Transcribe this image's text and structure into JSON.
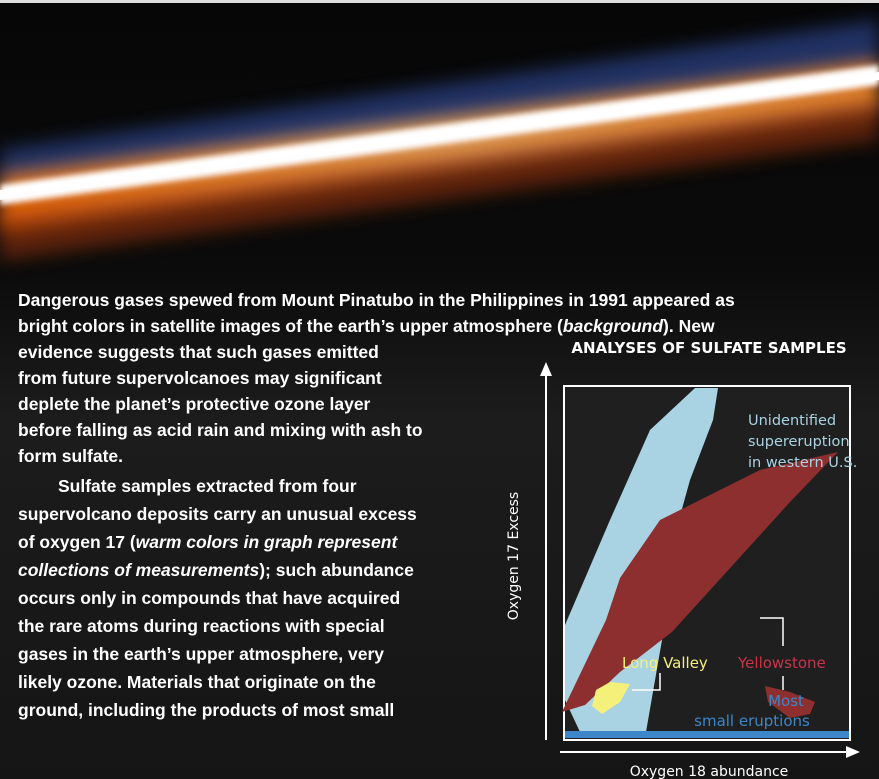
{
  "caption": {
    "paragraphs": [
      {
        "lines": [
          [
            "Dangerous gases spewed from Mount Pinatubo in the Philippines in 1991 appeared as"
          ],
          [
            "bright colors in satellite images of the earth’s upper atmosphere (",
            {
              "italic": "background"
            },
            "). New"
          ],
          [
            "evidence suggests that such gases emitted"
          ],
          [
            "from future supervolcanoes may significant"
          ],
          [
            "deplete the planet’s protective ozone layer"
          ],
          [
            "before falling as acid rain and mixing with ash to"
          ],
          [
            "form sulfate."
          ]
        ]
      },
      {
        "lines": [
          [
            "Sulfate samples extracted from four"
          ],
          [
            "supervolcano deposits carry an unusual excess"
          ],
          [
            "of oxygen 17 (",
            {
              "italic": "warm colors in graph represent"
            }
          ],
          [
            {
              "italic": "collections of measurements"
            },
            "); such abundance"
          ],
          [
            "occurs only in compounds that have acquired"
          ],
          [
            "the rare atoms during reactions with special"
          ],
          [
            "gases in the earth’s upper atmosphere, very"
          ],
          [
            "likely ozone. Materials that originate on the"
          ],
          [
            "ground, including the products of most small"
          ]
        ]
      }
    ]
  },
  "chart": {
    "title": "ANALYSES OF SULFATE SAMPLES",
    "y_axis_label": "Oxygen 17 Excess",
    "x_axis_label": "Oxygen 18 abundance",
    "labels": {
      "unidentified": [
        "Unidentified",
        "supereruption",
        "in western U.S."
      ],
      "long_valley": "Long Valley",
      "yellowstone": "Yellowstone",
      "small_eruptions": [
        "Most",
        "small eruptions"
      ]
    }
  }
}
